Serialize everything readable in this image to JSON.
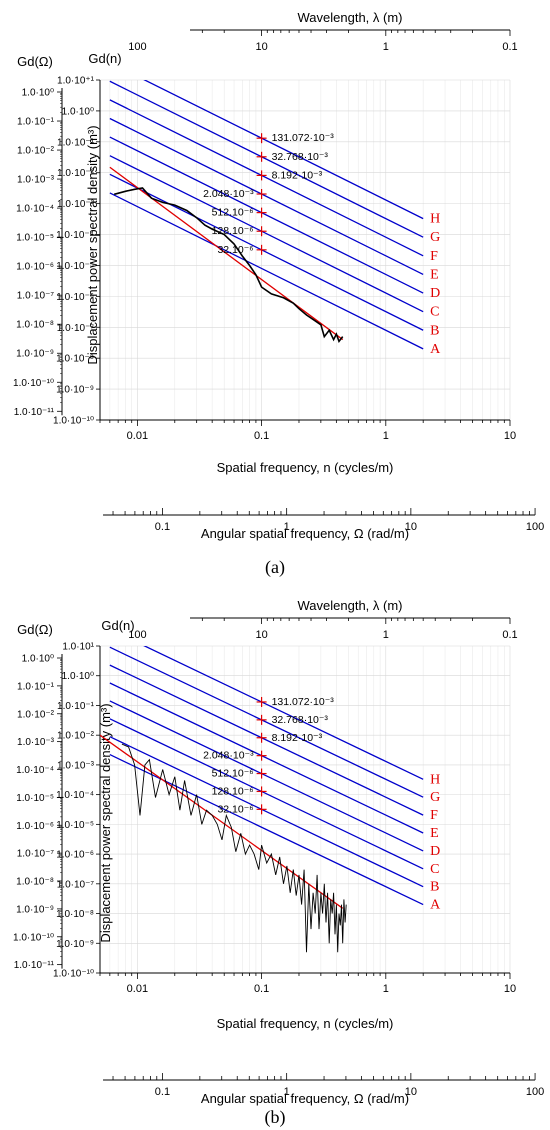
{
  "chart_data": [
    {
      "type": "line",
      "panel_label": "(a)",
      "xlabel": "Spatial frequency, n (cycles/m)",
      "ylabel": "Displacement power spectral density (m³)",
      "ylabel_short": "Gd(n)",
      "top_axis_label": "Wavelength, λ (m)",
      "top_ticks": [
        "100",
        "10",
        "1",
        "0.1"
      ],
      "bottom2_axis_label": "Angular spatial frequency,  Ω (rad/m)",
      "bottom2_ticks": [
        "0.1",
        "1",
        "10",
        "100"
      ],
      "left_axis_label": "Gd(Ω)",
      "left_ticks": [
        "1.0·10⁰",
        "1.0·10⁻¹",
        "1.0·10⁻²",
        "1.0·10⁻³",
        "1.0·10⁻⁴",
        "1.0·10⁻⁵",
        "1.0·10⁻⁶",
        "1.0·10⁻⁷",
        "1.0·10⁻⁸",
        "1.0·10⁻⁹",
        "1.0·10⁻¹⁰",
        "1.0·10⁻¹¹"
      ],
      "x_tick_labels": [
        "0.01",
        "0.1",
        "1",
        "10"
      ],
      "y_tick_labels": [
        "1.0·10⁺¹",
        "1.0·10⁰",
        "1.0·10⁻¹",
        "1.0·10⁻²",
        "1.0·10⁻³",
        "1.0·10⁻⁴",
        "1.0·10⁻⁵",
        "1.0·10⁻⁶",
        "1.0·10⁻⁷",
        "1.0·10⁻⁸",
        "1.0·10⁻⁹",
        "1.0·10⁻¹⁰"
      ],
      "xlim": [
        0.005,
        10
      ],
      "ylim_exp": [
        -10,
        1
      ],
      "xscale": "log",
      "yscale": "log",
      "grid": true,
      "class_lines": {
        "x_range": [
          0.006,
          2
        ],
        "slope": -2,
        "ref_n": 0.1,
        "labels": [
          "A",
          "B",
          "C",
          "D",
          "E",
          "F",
          "G",
          "H"
        ],
        "gd_at_ref": [
          8e-06,
          3.2e-05,
          0.000128,
          0.000512,
          0.002048,
          0.008192,
          0.032768,
          0.131072
        ],
        "annotations": [
          "32.10⁻⁶",
          "128.10⁻⁶",
          "512.10⁻⁶",
          "2.048·10⁻³",
          "8.192·10⁻³",
          "32.768·10⁻³",
          "131.072·10⁻³"
        ],
        "color": "#0000cc",
        "label_color": "#e00000"
      },
      "fit_line": {
        "x": [
          0.006,
          0.45
        ],
        "y": [
          0.015,
          4e-08
        ],
        "color": "#e00000"
      },
      "measured": {
        "color": "#000000",
        "x": [
          0.0065,
          0.008,
          0.0095,
          0.011,
          0.013,
          0.016,
          0.02,
          0.025,
          0.03,
          0.035,
          0.04,
          0.05,
          0.06,
          0.07,
          0.08,
          0.09,
          0.1,
          0.12,
          0.15,
          0.18,
          0.2,
          0.23,
          0.26,
          0.3,
          0.32,
          0.35,
          0.38,
          0.4,
          0.42,
          0.45
        ],
        "y": [
          0.002,
          0.0025,
          0.0029,
          0.0032,
          0.0015,
          0.0011,
          0.0009,
          0.0006,
          0.00035,
          0.0002,
          0.00015,
          0.0001,
          5e-05,
          2e-05,
          1e-05,
          5e-06,
          2e-06,
          1.2e-06,
          9e-07,
          6e-07,
          4e-07,
          2.5e-07,
          1.8e-07,
          1.2e-07,
          5e-08,
          8e-08,
          4e-08,
          6e-08,
          3.5e-08,
          5e-08
        ]
      }
    },
    {
      "type": "line",
      "panel_label": "(b)",
      "xlabel": "Spatial frequency, n (cycles/m)",
      "ylabel": "Displacement power spectral density (m³)",
      "ylabel_short": "Gd(n)",
      "top_axis_label": "Wavelength, λ (m)",
      "top_ticks": [
        "100",
        "10",
        "1",
        "0.1"
      ],
      "bottom2_axis_label": "Angular spatial frequency,  Ω (rad/m)",
      "bottom2_ticks": [
        "0.1",
        "1",
        "10",
        "100"
      ],
      "left_axis_label": "Gd(Ω)",
      "left_ticks": [
        "1.0·10⁰",
        "1.0·10⁻¹",
        "1.0·10⁻²",
        "1.0·10⁻³",
        "1.0·10⁻⁴",
        "1.0·10⁻⁵",
        "1.0·10⁻⁶",
        "1.0·10⁻⁷",
        "1.0·10⁻⁸",
        "1.0·10⁻⁹",
        "1.0·10⁻¹⁰",
        "1.0·10⁻¹¹"
      ],
      "x_tick_labels": [
        "0.01",
        "0.1",
        "1",
        "10"
      ],
      "y_tick_labels": [
        "1.0·10¹",
        "1.0·10⁰",
        "1.0·10⁻¹",
        "1.0·10⁻²",
        "1.0·10⁻³",
        "1.0·10⁻⁴",
        "1.0·10⁻⁵",
        "1.0·10⁻⁶",
        "1.0·10⁻⁷",
        "1.0·10⁻⁸",
        "1.0·10⁻⁹",
        "1.0·10⁻¹⁰"
      ],
      "xlim": [
        0.005,
        10
      ],
      "ylim_exp": [
        -10,
        1
      ],
      "xscale": "log",
      "yscale": "log",
      "grid": true,
      "class_lines": {
        "x_range": [
          0.006,
          2
        ],
        "slope": -2,
        "ref_n": 0.1,
        "labels": [
          "A",
          "B",
          "C",
          "D",
          "E",
          "F",
          "G",
          "H"
        ],
        "gd_at_ref": [
          8e-06,
          3.2e-05,
          0.000128,
          0.000512,
          0.002048,
          0.008192,
          0.032768,
          0.131072
        ],
        "annotations": [
          "32.10⁻⁶",
          "128.10⁻⁶",
          "512.10⁻⁶",
          "2.048·10⁻³",
          "8.192·10⁻³",
          "32.768·10⁻³",
          "131.072·10⁻³"
        ],
        "color": "#0000cc",
        "label_color": "#e00000"
      },
      "fit_line": {
        "x": [
          0.005,
          0.45
        ],
        "y": [
          0.01,
          1.5e-08
        ],
        "color": "#e00000"
      },
      "measured": {
        "color": "#000000",
        "x": [
          0.0075,
          0.0085,
          0.0095,
          0.0105,
          0.0115,
          0.0125,
          0.014,
          0.016,
          0.018,
          0.02,
          0.022,
          0.024,
          0.027,
          0.03,
          0.033,
          0.036,
          0.04,
          0.044,
          0.048,
          0.052,
          0.057,
          0.062,
          0.068,
          0.074,
          0.08,
          0.087,
          0.095,
          0.1,
          0.11,
          0.12,
          0.13,
          0.14,
          0.15,
          0.16,
          0.17,
          0.18,
          0.19,
          0.2,
          0.21,
          0.22,
          0.23,
          0.24,
          0.25,
          0.26,
          0.27,
          0.28,
          0.29,
          0.3,
          0.31,
          0.32,
          0.33,
          0.34,
          0.35,
          0.36,
          0.37,
          0.38,
          0.39,
          0.4,
          0.41,
          0.42,
          0.43,
          0.44,
          0.45,
          0.46,
          0.47,
          0.48
        ],
        "y": [
          0.005,
          0.004,
          0.001,
          2e-05,
          0.001,
          0.0015,
          8e-05,
          0.0007,
          0.0001,
          0.0004,
          3e-05,
          0.0003,
          2e-05,
          0.0001,
          1e-05,
          3e-05,
          2e-05,
          1e-05,
          3e-06,
          2e-05,
          8e-06,
          1.2e-06,
          5e-06,
          1e-06,
          2e-06,
          1e-06,
          3e-07,
          2e-06,
          5e-07,
          1e-06,
          2e-07,
          8e-07,
          1e-07,
          4e-07,
          5e-08,
          3e-07,
          4e-08,
          2e-07,
          2e-08,
          3e-07,
          5e-10,
          1e-07,
          3e-09,
          5e-08,
          1e-08,
          2e-07,
          3e-09,
          5e-08,
          1e-08,
          1e-07,
          5e-09,
          5e-08,
          1e-09,
          3e-08,
          1e-08,
          5e-08,
          2e-09,
          2e-08,
          5e-10,
          1e-08,
          4e-09,
          2e-08,
          1e-09,
          3e-08,
          5e-09,
          2e-08
        ]
      }
    }
  ]
}
